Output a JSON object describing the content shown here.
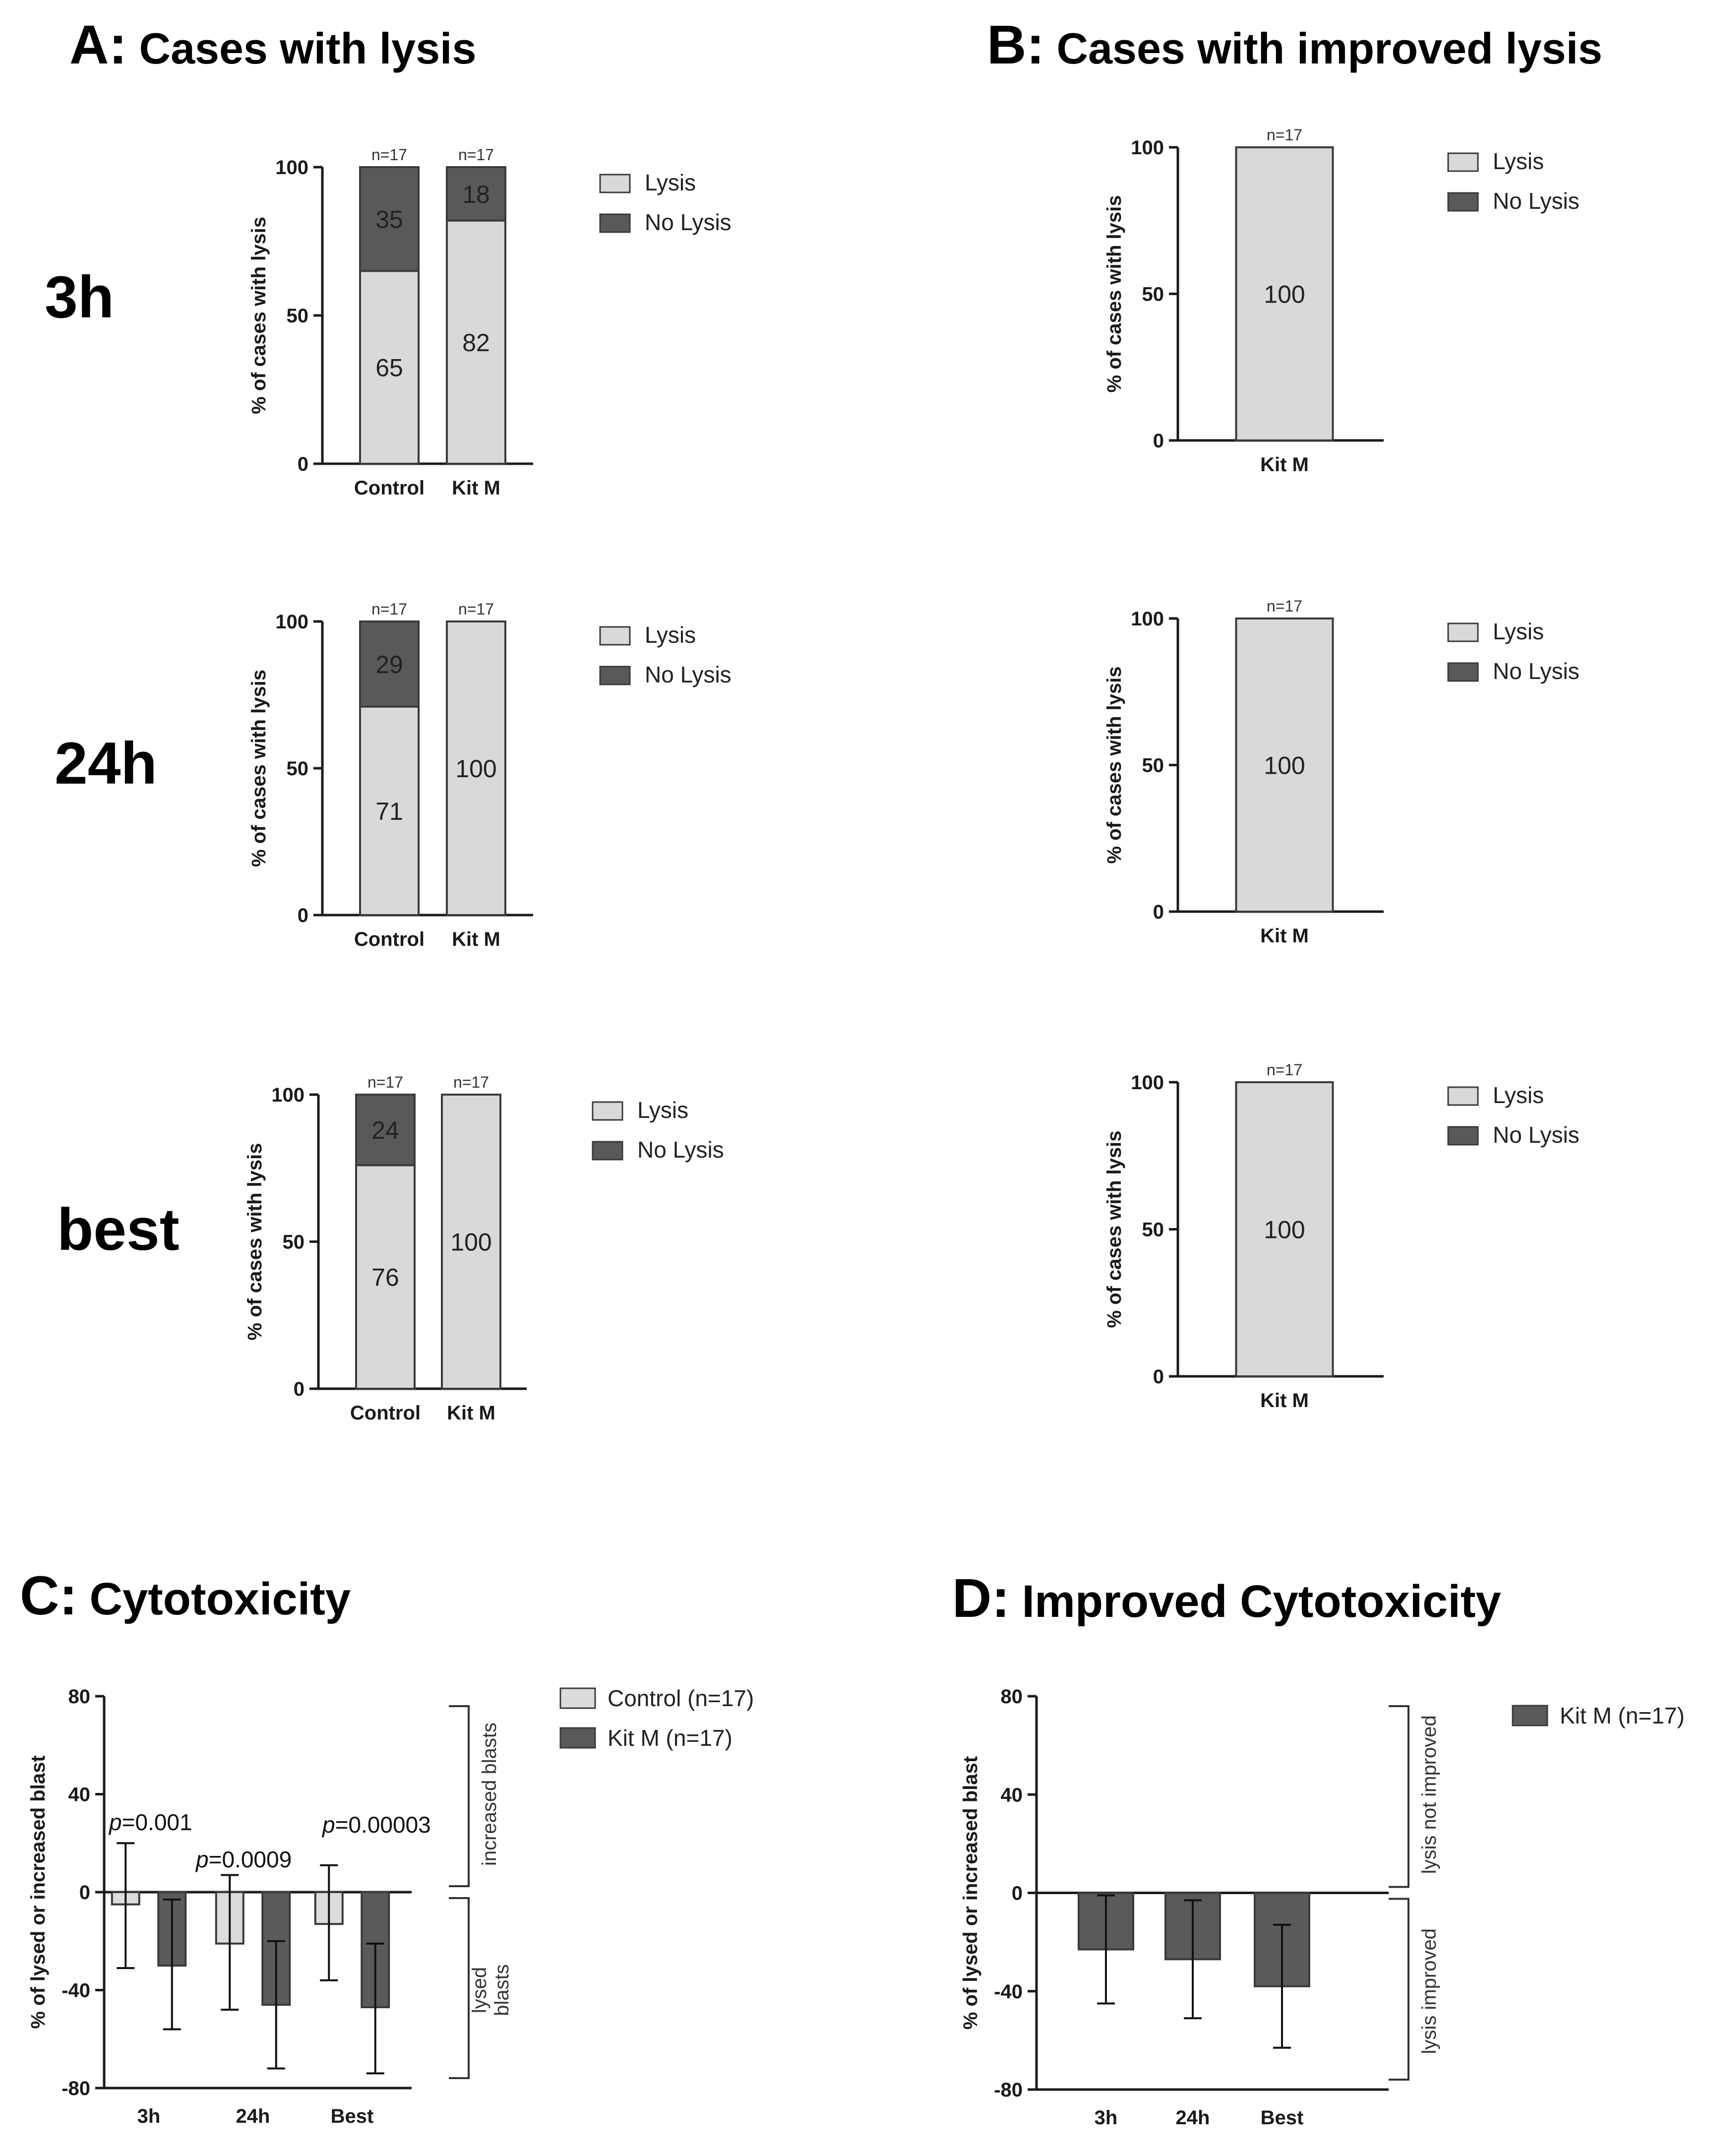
{
  "colors": {
    "lysis": "#d9d9d9",
    "no_lysis": "#595959",
    "control": "#dcdcdc",
    "kitm": "#5a5a5a",
    "axis": "#1a1a1a",
    "bar_border": "#3a3a3a"
  },
  "panels": {
    "A": {
      "letter": "A:",
      "title": "Cases with lysis"
    },
    "B": {
      "letter": "B:",
      "title": "Cases with improved lysis"
    },
    "C": {
      "letter": "C:",
      "title": "Cytotoxicity"
    },
    "D": {
      "letter": "D:",
      "title": "Improved Cytotoxicity"
    }
  },
  "row_labels": [
    "3h",
    "24h",
    "best"
  ],
  "chart_data": [
    {
      "id": "A-3h",
      "type": "bar",
      "stacked": true,
      "ylabel": "% of cases with lysis",
      "ylim": [
        0,
        100
      ],
      "yticks": [
        0,
        50,
        100
      ],
      "categories": [
        "Control",
        "Kit M"
      ],
      "n_labels": [
        "n=17",
        "n=17"
      ],
      "series": [
        {
          "name": "Lysis",
          "values": [
            65,
            82
          ]
        },
        {
          "name": "No Lysis",
          "values": [
            35,
            18
          ]
        }
      ],
      "data_labels": {
        "Lysis": [
          "65",
          "82"
        ],
        "No Lysis": [
          "35",
          "18"
        ]
      },
      "legend": [
        "Lysis",
        "No Lysis"
      ]
    },
    {
      "id": "A-24h",
      "type": "bar",
      "stacked": true,
      "ylabel": "% of cases with lysis",
      "ylim": [
        0,
        100
      ],
      "yticks": [
        0,
        50,
        100
      ],
      "categories": [
        "Control",
        "Kit M"
      ],
      "n_labels": [
        "n=17",
        "n=17"
      ],
      "series": [
        {
          "name": "Lysis",
          "values": [
            71,
            100
          ]
        },
        {
          "name": "No Lysis",
          "values": [
            29,
            0
          ]
        }
      ],
      "data_labels": {
        "Lysis": [
          "71",
          "100"
        ],
        "No Lysis": [
          "29",
          ""
        ]
      },
      "legend": [
        "Lysis",
        "No Lysis"
      ]
    },
    {
      "id": "A-best",
      "type": "bar",
      "stacked": true,
      "ylabel": "% of cases with lysis",
      "ylim": [
        0,
        100
      ],
      "yticks": [
        0,
        50,
        100
      ],
      "categories": [
        "Control",
        "Kit M"
      ],
      "n_labels": [
        "n=17",
        "n=17"
      ],
      "series": [
        {
          "name": "Lysis",
          "values": [
            76,
            100
          ]
        },
        {
          "name": "No Lysis",
          "values": [
            24,
            0
          ]
        }
      ],
      "data_labels": {
        "Lysis": [
          "76",
          "100"
        ],
        "No Lysis": [
          "24",
          ""
        ]
      },
      "legend": [
        "Lysis",
        "No Lysis"
      ]
    },
    {
      "id": "B-3h",
      "type": "bar",
      "stacked": true,
      "ylabel": "% of cases with lysis",
      "ylim": [
        0,
        100
      ],
      "yticks": [
        0,
        50,
        100
      ],
      "categories": [
        "Kit M"
      ],
      "n_labels": [
        "n=17"
      ],
      "series": [
        {
          "name": "Lysis",
          "values": [
            100
          ]
        },
        {
          "name": "No Lysis",
          "values": [
            0
          ]
        }
      ],
      "data_labels": {
        "Lysis": [
          "100"
        ],
        "No Lysis": [
          ""
        ]
      },
      "legend": [
        "Lysis",
        "No Lysis"
      ]
    },
    {
      "id": "B-24h",
      "type": "bar",
      "stacked": true,
      "ylabel": "% of cases with lysis",
      "ylim": [
        0,
        100
      ],
      "yticks": [
        0,
        50,
        100
      ],
      "categories": [
        "Kit M"
      ],
      "n_labels": [
        "n=17"
      ],
      "series": [
        {
          "name": "Lysis",
          "values": [
            100
          ]
        },
        {
          "name": "No Lysis",
          "values": [
            0
          ]
        }
      ],
      "data_labels": {
        "Lysis": [
          "100"
        ],
        "No Lysis": [
          ""
        ]
      },
      "legend": [
        "Lysis",
        "No Lysis"
      ]
    },
    {
      "id": "B-best",
      "type": "bar",
      "stacked": true,
      "ylabel": "% of cases with lysis",
      "ylim": [
        0,
        100
      ],
      "yticks": [
        0,
        50,
        100
      ],
      "categories": [
        "Kit M"
      ],
      "n_labels": [
        "n=17"
      ],
      "series": [
        {
          "name": "Lysis",
          "values": [
            100
          ]
        },
        {
          "name": "No Lysis",
          "values": [
            0
          ]
        }
      ],
      "data_labels": {
        "Lysis": [
          "100"
        ],
        "No Lysis": [
          ""
        ]
      },
      "legend": [
        "Lysis",
        "No Lysis"
      ]
    },
    {
      "id": "C",
      "type": "bar",
      "stacked": false,
      "ylabel": "% of lysed or increased blast",
      "ylim": [
        -80,
        80
      ],
      "yticks": [
        -80,
        -40,
        0,
        40,
        80
      ],
      "categories": [
        "3h",
        "24h",
        "Best"
      ],
      "series": [
        {
          "name": "Control (n=17)",
          "values": [
            -5,
            -21,
            -13
          ],
          "err_lo": [
            -31,
            -48,
            -36
          ],
          "err_hi": [
            20,
            7,
            11
          ]
        },
        {
          "name": "Kit M (n=17)",
          "values": [
            -30,
            -46,
            -47
          ],
          "err_lo": [
            -56,
            -72,
            -74
          ],
          "err_hi": [
            -3,
            -20,
            -21
          ]
        }
      ],
      "annotations": [
        {
          "italic": "p",
          "rest": "=0.001",
          "category": "3h"
        },
        {
          "italic": "p",
          "rest": "=0.0009",
          "category": "24h"
        },
        {
          "italic": "p",
          "rest": "=0.00003",
          "category": "Best"
        }
      ],
      "brackets": {
        "upper": "increased blasts",
        "lower_line1": "lysed",
        "lower_line2": "blasts"
      },
      "legend": [
        "Control (n=17)",
        "Kit M (n=17)"
      ]
    },
    {
      "id": "D",
      "type": "bar",
      "stacked": false,
      "ylabel": "% of lysed or increased blast",
      "ylim": [
        -80,
        80
      ],
      "yticks": [
        -80,
        -40,
        0,
        40,
        80
      ],
      "categories": [
        "3h",
        "24h",
        "Best"
      ],
      "series": [
        {
          "name": "Kit M (n=17)",
          "values": [
            -23,
            -27,
            -38
          ],
          "err_lo": [
            -45,
            -51,
            -63
          ],
          "err_hi": [
            -1,
            -3,
            -13
          ]
        }
      ],
      "brackets": {
        "upper": "lysis not improved",
        "lower": "lysis improved"
      },
      "legend": [
        "Kit M (n=17)"
      ]
    }
  ]
}
